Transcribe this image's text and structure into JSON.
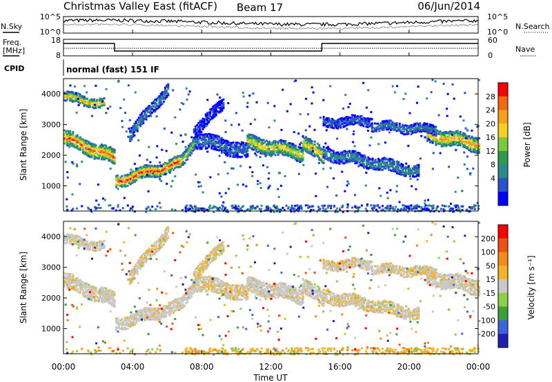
{
  "header": {
    "title": "Christmas Valley East (fitACF)",
    "beam": "Beam 17",
    "date": "06/Jun/2014"
  },
  "top_panels": {
    "nsky_label": "N.Sky",
    "nsky_ticks": [
      "10^5",
      "10^0"
    ],
    "nsearch_label": "N.Search",
    "nsearch_ticks": [
      "10^5",
      "10^0"
    ],
    "freq_label_1": "Freq.",
    "freq_label_2": "[MHz]",
    "freq_ticks": [
      "18",
      "8"
    ],
    "nave_label": "Nave",
    "nave_ticks": [
      "60",
      "0"
    ],
    "cpid_label": "CPID",
    "cpid_value": "normal (fast) 151 IF"
  },
  "chart_data": [
    {
      "type": "heatmap",
      "panel": "power",
      "ylabel": "Slant Range [km]",
      "ylim": [
        180,
        4500
      ],
      "yticks": [
        "1000",
        "2000",
        "3000",
        "4000"
      ],
      "colorbar_label": "Power [dB]",
      "colorbar_ticks": [
        "28",
        "24",
        "20",
        "16",
        "12",
        "8",
        "4"
      ],
      "colorbar_colors": [
        "#0000ff",
        "#2a52c8",
        "#2c8a8a",
        "#2e9a4c",
        "#7ccb3e",
        "#f2d21e",
        "#f5a21a",
        "#f06a14",
        "#ff0000"
      ],
      "bands": [
        {
          "from": 0.0,
          "to": 2.9,
          "y0": 2600,
          "y1": 1950,
          "width": 420,
          "level": 0.85
        },
        {
          "from": 3.0,
          "to": 6.8,
          "y0": 1180,
          "y1": 1800,
          "width": 330,
          "level": 0.9
        },
        {
          "from": 6.8,
          "to": 7.6,
          "y0": 1800,
          "y1": 2550,
          "width": 380,
          "level": 0.55
        },
        {
          "from": 7.6,
          "to": 10.6,
          "y0": 2550,
          "y1": 2150,
          "width": 420,
          "level": 0.25
        },
        {
          "from": 10.6,
          "to": 13.8,
          "y0": 2450,
          "y1": 2100,
          "width": 460,
          "level": 0.65
        },
        {
          "from": 13.8,
          "to": 15.0,
          "y0": 2500,
          "y1": 1950,
          "width": 420,
          "level": 0.7
        },
        {
          "from": 15.0,
          "to": 20.5,
          "y0": 2100,
          "y1": 1500,
          "width": 380,
          "level": 0.3
        },
        {
          "from": 21.0,
          "to": 24.0,
          "y0": 2700,
          "y1": 2400,
          "width": 420,
          "level": 0.75
        },
        {
          "from": 0.0,
          "to": 2.3,
          "y0": 3950,
          "y1": 3700,
          "width": 250,
          "level": 0.7
        },
        {
          "from": 3.8,
          "to": 6.0,
          "y0": 2700,
          "y1": 4200,
          "width": 320,
          "level": 0.3
        },
        {
          "from": 15.0,
          "to": 17.8,
          "y0": 3100,
          "y1": 3150,
          "width": 260,
          "level": 0.2
        },
        {
          "from": 17.8,
          "to": 21.5,
          "y0": 3000,
          "y1": 2850,
          "width": 300,
          "level": 0.28
        },
        {
          "from": 7.5,
          "to": 9.2,
          "y0": 2800,
          "y1": 3700,
          "width": 360,
          "level": 0.12
        }
      ]
    },
    {
      "type": "heatmap",
      "panel": "velocity",
      "ylabel": "Slant Range [km]",
      "ylim": [
        180,
        4500
      ],
      "yticks": [
        "1000",
        "2000",
        "3000",
        "4000"
      ],
      "colorbar_label": "Velocity [m s⁻¹]",
      "colorbar_ticks": [
        "200",
        "100",
        "50",
        "15",
        "-15",
        "-50",
        "-100",
        "-200"
      ],
      "colorbar_colors": [
        "#2020b0",
        "#3c64dc",
        "#3aa03a",
        "#8cd04a",
        "#c8c8c8",
        "#f5b428",
        "#f08c1e",
        "#f05014",
        "#ff0000"
      ],
      "xlabel": "Time UT",
      "xticks": [
        "00:00",
        "04:00",
        "08:00",
        "12:00",
        "16:00",
        "20:00",
        "00:00"
      ],
      "xlim": [
        0,
        24
      ]
    }
  ]
}
